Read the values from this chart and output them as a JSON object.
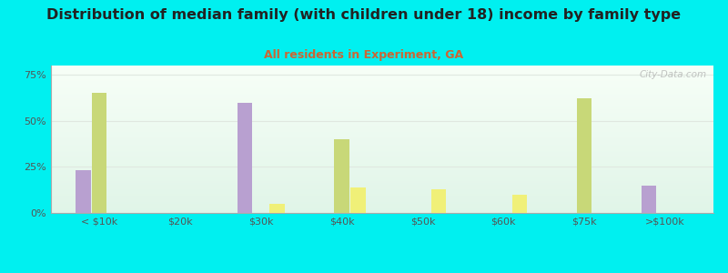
{
  "title": "Distribution of median family (with children under 18) income by family type",
  "subtitle": "All residents in Experiment, GA",
  "categories": [
    "< $10k",
    "$20k",
    "$30k",
    "$40k",
    "$50k",
    "$60k",
    "$75k",
    ">$100k"
  ],
  "series": {
    "Married couple": [
      23,
      0,
      60,
      0,
      0,
      0,
      0,
      15
    ],
    "Male, no wife": [
      65,
      0,
      0,
      40,
      0,
      0,
      62,
      0
    ],
    "Female, no husband": [
      0,
      0,
      5,
      14,
      13,
      10,
      0,
      0
    ]
  },
  "colors": {
    "Married couple": "#b8a0d0",
    "Male, no wife": "#c8d878",
    "Female, no husband": "#f0f078"
  },
  "bar_width": 0.2,
  "ylim": [
    0,
    80
  ],
  "yticks": [
    0,
    25,
    50,
    75
  ],
  "ytick_labels": [
    "0%",
    "25%",
    "50%",
    "75%"
  ],
  "background_color": "#00f0f0",
  "plot_bg_gradient_top": "#f8fef8",
  "plot_bg_gradient_bottom": "#e0f4e8",
  "title_fontsize": 11.5,
  "subtitle_fontsize": 9,
  "legend_fontsize": 8.5,
  "tick_fontsize": 8,
  "title_color": "#222222",
  "subtitle_color": "#cc6633",
  "tick_color": "#555555",
  "legend_text_color": "#333333",
  "grid_color": "#e0e8e0",
  "watermark": "City-Data.com"
}
